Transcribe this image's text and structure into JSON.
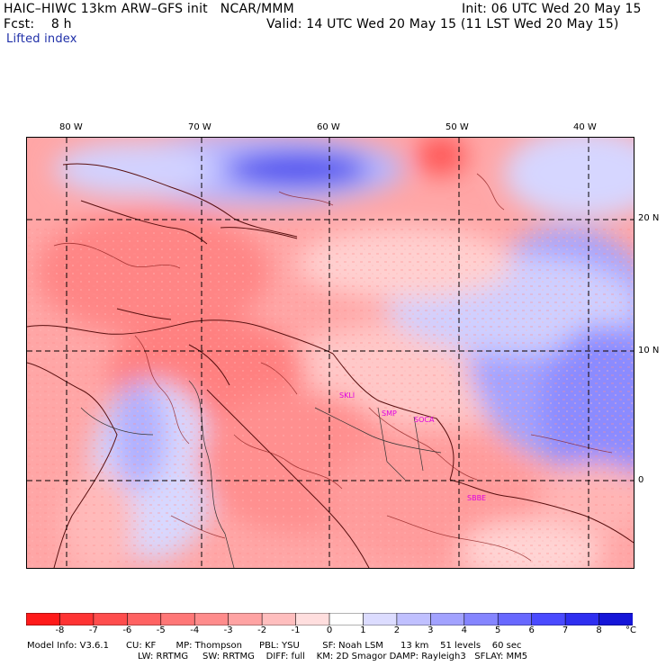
{
  "header": {
    "title": "HAIC–HIWC 13km ARW–GFS init   NCAR/MMM",
    "init": "Init: 06 UTC Wed 20 May 15",
    "fcst": "Fcst:    8 h",
    "valid": "Valid: 14 UTC Wed 20 May 15 (11 LST Wed 20 May 15)",
    "field": "Lifted index"
  },
  "map": {
    "lon_labels": [
      "80 W",
      "70 W",
      "60 W",
      "50 W",
      "40 W"
    ],
    "lat_labels": [
      "20 N",
      "10 N",
      "0"
    ],
    "stations": [
      "SKLI",
      "SMP",
      "SOCA",
      "SBBE"
    ]
  },
  "colorbar": {
    "unit": "°C",
    "levels": [
      "-8",
      "-7",
      "-6",
      "-5",
      "-4",
      "-3",
      "-2",
      "-1",
      "0",
      "1",
      "2",
      "3",
      "4",
      "5",
      "6",
      "7",
      "8"
    ],
    "colors": [
      "#ff1a1a",
      "#ff3333",
      "#ff4d4d",
      "#ff6262",
      "#ff7777",
      "#ff8c8c",
      "#ffa3a3",
      "#ffbebe",
      "#ffdede",
      "#ffffff",
      "#dcdcff",
      "#c0c0ff",
      "#a2a2ff",
      "#8585ff",
      "#6868ff",
      "#4a4aff",
      "#2e2ef0",
      "#1515d8"
    ]
  },
  "footer": {
    "line1": "Model Info: V3.6.1      CU: KF       MP: Thompson      PBL: YSU        SF: Noah LSM      13 km    51 levels    60 sec",
    "line2": "LW: RRTMG     SW: RRTMG    DIFF: full    KM: 2D Smagor DAMP: Rayleigh3   SFLAY: MM5"
  }
}
